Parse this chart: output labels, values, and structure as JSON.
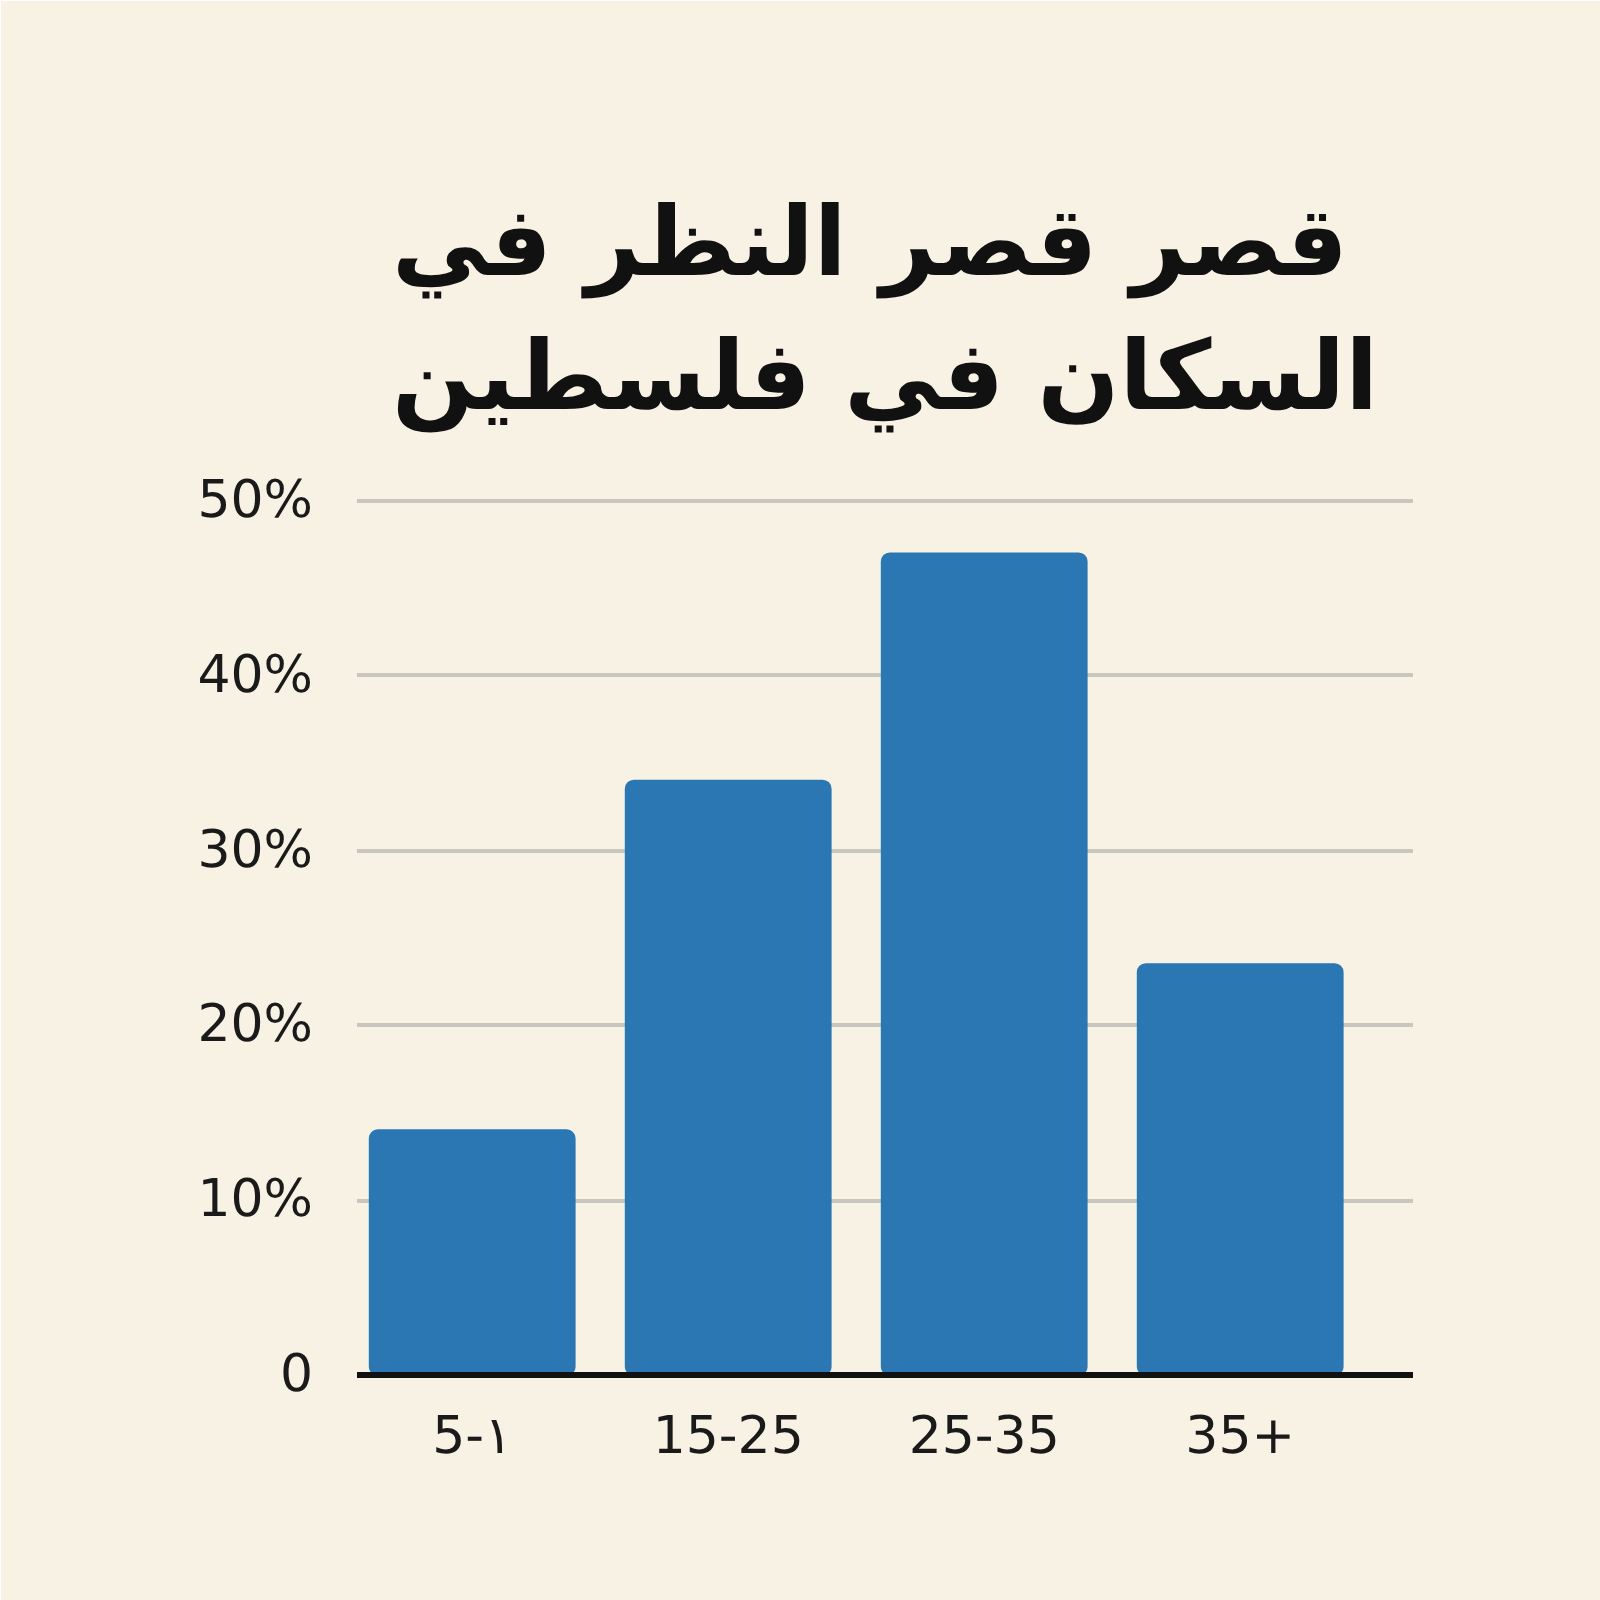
{
  "chart_data": {
    "type": "bar",
    "title": "قصر قصر النظر في\nالسكان في فلسطين",
    "categories": [
      "5-١",
      "15-25",
      "25-35",
      "35+"
    ],
    "values": [
      14,
      34,
      47,
      23.5
    ],
    "color": "#2b77b4",
    "ylim": [
      0,
      50
    ],
    "yticks": [
      0,
      {
        "value": 10,
        "label": "10%"
      },
      {
        "value": 20,
        "label": "20%"
      },
      {
        "value": 30,
        "label": "30%"
      },
      {
        "value": 40,
        "label": "40%"
      },
      {
        "value": 50,
        "label": "50%"
      }
    ],
    "grid": "y"
  }
}
